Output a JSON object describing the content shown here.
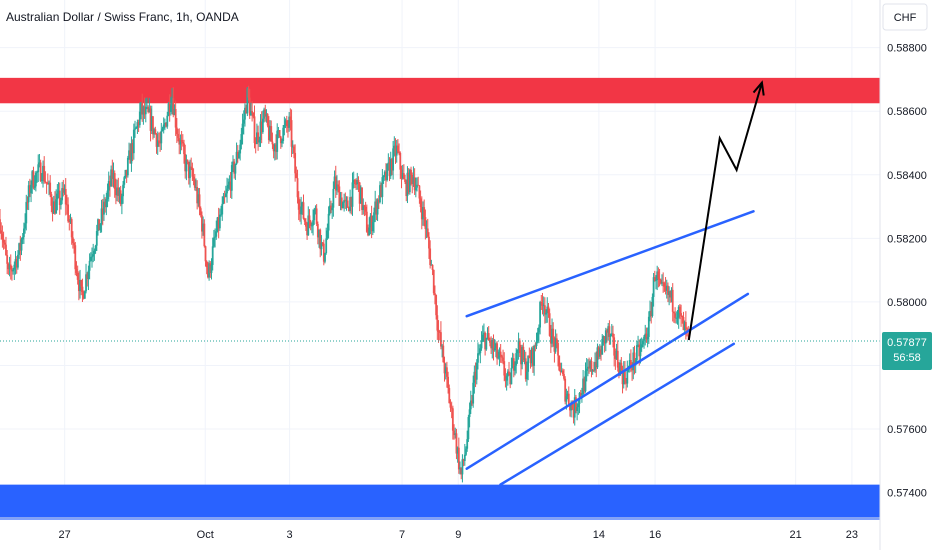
{
  "header": {
    "symbol_title": "Australian Dollar / Swiss Franc, 1h, OANDA"
  },
  "price_scale": {
    "currency_button": "CHF"
  },
  "price_label": {
    "price": "0.57877",
    "countdown": "56:58"
  },
  "colors": {
    "up": "#26a69a",
    "down": "#ef5350",
    "resistance_zone": "#f23645",
    "support_zone": "#2962ff",
    "channel_line": "#2962ff",
    "projection": "#000000",
    "price_label_bg": "#26a69a",
    "grid": "#f0f3fa"
  },
  "chart_data": {
    "type": "candlestick",
    "title": "Australian Dollar / Swiss Franc, 1h, OANDA",
    "x_tick_labels": [
      "27",
      "Oct",
      "3",
      "7",
      "9",
      "14",
      "16",
      "21",
      "23"
    ],
    "x_tick_days": [
      27,
      32,
      35,
      39,
      41,
      46,
      48,
      53,
      55
    ],
    "y_ticks": [
      0.574,
      0.576,
      0.578,
      0.58,
      0.582,
      0.584,
      0.586,
      0.588
    ],
    "y_tick_labels": [
      "0.57400",
      "0.57600",
      "0.57800",
      "0.58000",
      "0.58200",
      "0.58400",
      "0.58600",
      "0.58800"
    ],
    "ylim": [
      0.5732,
      0.5895
    ],
    "xlim": [
      24.7,
      56.0
    ],
    "grid": true,
    "last_price": 0.57877,
    "price_path": [
      [
        24.7,
        0.5826
      ],
      [
        25.0,
        0.5808
      ],
      [
        25.4,
        0.5816
      ],
      [
        25.8,
        0.5838
      ],
      [
        26.2,
        0.5842
      ],
      [
        26.6,
        0.583
      ],
      [
        27.0,
        0.5834
      ],
      [
        27.3,
        0.5818
      ],
      [
        27.6,
        0.5801
      ],
      [
        27.9,
        0.5814
      ],
      [
        28.3,
        0.5826
      ],
      [
        28.7,
        0.584
      ],
      [
        29.0,
        0.5831
      ],
      [
        29.3,
        0.5845
      ],
      [
        29.7,
        0.586
      ],
      [
        30.0,
        0.5858
      ],
      [
        30.4,
        0.5849
      ],
      [
        30.8,
        0.5866
      ],
      [
        31.0,
        0.5854
      ],
      [
        31.3,
        0.5843
      ],
      [
        31.6,
        0.5838
      ],
      [
        31.9,
        0.5824
      ],
      [
        32.1,
        0.5808
      ],
      [
        32.4,
        0.5822
      ],
      [
        32.8,
        0.5835
      ],
      [
        33.2,
        0.5848
      ],
      [
        33.5,
        0.5865
      ],
      [
        33.8,
        0.5851
      ],
      [
        34.1,
        0.5858
      ],
      [
        34.4,
        0.5849
      ],
      [
        34.7,
        0.5853
      ],
      [
        35.0,
        0.5856
      ],
      [
        35.3,
        0.5833
      ],
      [
        35.6,
        0.5824
      ],
      [
        35.9,
        0.5829
      ],
      [
        36.2,
        0.5814
      ],
      [
        36.6,
        0.5837
      ],
      [
        37.0,
        0.5829
      ],
      [
        37.4,
        0.5838
      ],
      [
        37.8,
        0.5822
      ],
      [
        38.2,
        0.5834
      ],
      [
        38.5,
        0.5841
      ],
      [
        38.8,
        0.5848
      ],
      [
        39.1,
        0.5836
      ],
      [
        39.4,
        0.584
      ],
      [
        39.8,
        0.5826
      ],
      [
        40.1,
        0.5808
      ],
      [
        40.3,
        0.579
      ],
      [
        40.5,
        0.578
      ],
      [
        40.7,
        0.5768
      ],
      [
        40.9,
        0.5757
      ],
      [
        41.1,
        0.5745
      ],
      [
        41.3,
        0.5756
      ],
      [
        41.6,
        0.5778
      ],
      [
        41.9,
        0.5789
      ],
      [
        42.2,
        0.5786
      ],
      [
        42.5,
        0.5781
      ],
      [
        42.8,
        0.5774
      ],
      [
        43.1,
        0.5787
      ],
      [
        43.4,
        0.5779
      ],
      [
        43.7,
        0.5784
      ],
      [
        44.0,
        0.5802
      ],
      [
        44.3,
        0.579
      ],
      [
        44.5,
        0.5784
      ],
      [
        44.8,
        0.5772
      ],
      [
        45.1,
        0.5766
      ],
      [
        45.4,
        0.5773
      ],
      [
        45.7,
        0.5779
      ],
      [
        46.0,
        0.5783
      ],
      [
        46.3,
        0.5791
      ],
      [
        46.6,
        0.5783
      ],
      [
        46.9,
        0.5776
      ],
      [
        47.2,
        0.5781
      ],
      [
        47.5,
        0.5785
      ],
      [
        47.8,
        0.5793
      ],
      [
        48.0,
        0.581
      ],
      [
        48.2,
        0.5803
      ],
      [
        48.5,
        0.5802
      ],
      [
        48.8,
        0.5797
      ],
      [
        49.0,
        0.5792
      ],
      [
        49.2,
        0.5788
      ]
    ],
    "annotations": {
      "resistance_zone": {
        "from": 0.58625,
        "to": 0.58705
      },
      "support_zone": {
        "from": 0.57315,
        "to": 0.57425
      },
      "channel_upper": [
        [
          41.3,
          0.57955
        ],
        [
          51.5,
          0.58285
        ]
      ],
      "channel_middle": [
        [
          41.3,
          0.57475
        ],
        [
          51.3,
          0.58025
        ]
      ],
      "channel_lower": [
        [
          42.5,
          0.57425
        ],
        [
          50.8,
          0.57868
        ]
      ],
      "projection_path": [
        [
          49.2,
          0.5788
        ],
        [
          50.3,
          0.58515
        ],
        [
          50.9,
          0.58415
        ],
        [
          51.8,
          0.5869
        ]
      ]
    }
  }
}
